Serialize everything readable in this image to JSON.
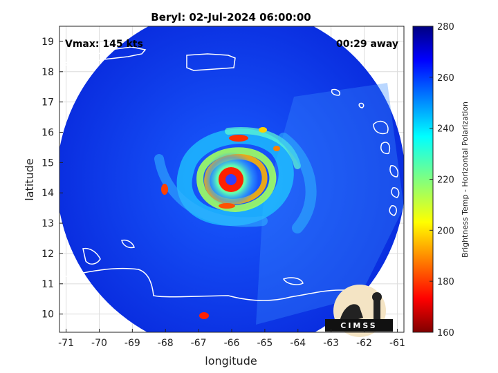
{
  "chart_data": {
    "type": "heatmap",
    "title": "Beryl: 02-Jul-2024 06:00:00",
    "xlabel": "longitude",
    "ylabel": "latitude",
    "xlim": [
      -71.2,
      -60.8
    ],
    "ylim": [
      9.4,
      19.5
    ],
    "xticks": [
      "-71",
      "-70",
      "-69",
      "-68",
      "-67",
      "-66",
      "-65",
      "-64",
      "-63",
      "-62",
      "-61"
    ],
    "yticks": [
      "10",
      "11",
      "12",
      "13",
      "14",
      "15",
      "16",
      "17",
      "18",
      "19"
    ],
    "grid": true,
    "annotations": {
      "vmax": "Vmax: 145 kts",
      "time_offset": "00:29 away"
    },
    "storm_center": {
      "lon": -66.0,
      "lat": 14.4
    },
    "colorbar": {
      "label": "Brightness Temp - Horizontal Polarization",
      "range": [
        160,
        280
      ],
      "ticks": [
        "280",
        "260",
        "240",
        "220",
        "200",
        "180",
        "160"
      ],
      "colormap": "jet"
    },
    "logo_text": "CIMSS"
  }
}
